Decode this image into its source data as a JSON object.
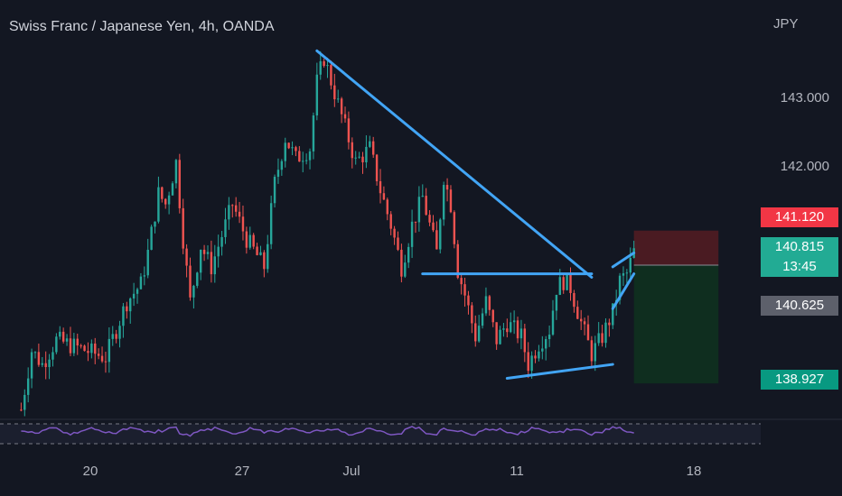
{
  "header": {
    "title": "Swiss Franc / Japanese Yen, 4h, OANDA"
  },
  "price_axis": {
    "currency": "JPY",
    "ticks": [
      "143.000",
      "142.000"
    ],
    "badges": {
      "stop": "141.120",
      "last": "140.815",
      "countdown": "13:45",
      "entry": "140.625",
      "target": "138.927"
    }
  },
  "time_axis": {
    "ticks": [
      "20",
      "27",
      "Jul",
      "11",
      "18"
    ]
  },
  "colors": {
    "background": "#131722",
    "up": "#26a69a",
    "down": "#ef5350",
    "trendline": "#42a5f5",
    "rsi": "#7e57c2",
    "stop_badge": "#f23645",
    "last_badge": "#22ab94",
    "entry_badge": "#5d606b",
    "target_badge": "#089981",
    "stop_zone": "#4a1b22",
    "target_zone": "#0f2e1f"
  },
  "chart_data": {
    "type": "candlestick",
    "symbol": "CHFJPY",
    "interval": "4h",
    "ylim": [
      138.45,
      144.3
    ],
    "x_range": [
      "2022-06-15",
      "2022-07-21"
    ],
    "close_path": [
      [
        "2022-06-16",
        138.55
      ],
      [
        "2022-06-16T12:00",
        139.4
      ],
      [
        "2022-06-17",
        139.2
      ],
      [
        "2022-06-17T16:00",
        139.55
      ],
      [
        "2022-06-20",
        139.3
      ],
      [
        "2022-06-21",
        140.1
      ],
      [
        "2022-06-21T16:00",
        140.35
      ],
      [
        "2022-06-22",
        140.8
      ],
      [
        "2022-06-22T12:00",
        141.65
      ],
      [
        "2022-06-22T20:00",
        141.5
      ],
      [
        "2022-06-23T08:00",
        142.1
      ],
      [
        "2022-06-23T16:00",
        141.0
      ],
      [
        "2022-06-24",
        140.1
      ],
      [
        "2022-06-24T12:00",
        140.9
      ],
      [
        "2022-06-25",
        140.6
      ],
      [
        "2022-06-26",
        141.5
      ],
      [
        "2022-06-26T16:00",
        141.0
      ],
      [
        "2022-06-27T12:00",
        140.6
      ],
      [
        "2022-06-28",
        141.8
      ],
      [
        "2022-06-28T12:00",
        142.45
      ],
      [
        "2022-06-29",
        142.15
      ],
      [
        "2022-06-29T16:00",
        142.3
      ],
      [
        "2022-06-30",
        143.25
      ],
      [
        "2022-06-30T08:00",
        143.6
      ],
      [
        "2022-06-30T20:00",
        143.1
      ],
      [
        "2022-07-01T08:00",
        142.6
      ],
      [
        "2022-07-01T20:00",
        142.1
      ],
      [
        "2022-07-02T12:00",
        142.3
      ],
      [
        "2022-07-03",
        141.7
      ],
      [
        "2022-07-03T12:00",
        141.2
      ],
      [
        "2022-07-04",
        140.6
      ],
      [
        "2022-07-04T12:00",
        141.2
      ],
      [
        "2022-07-05",
        141.6
      ],
      [
        "2022-07-05T16:00",
        140.8
      ],
      [
        "2022-07-06",
        141.9
      ],
      [
        "2022-07-06T08:00",
        141.5
      ],
      [
        "2022-07-06T16:00",
        140.55
      ],
      [
        "2022-07-07",
        140.2
      ],
      [
        "2022-07-07T12:00",
        139.6
      ],
      [
        "2022-07-08",
        140.1
      ],
      [
        "2022-07-08T12:00",
        139.55
      ],
      [
        "2022-07-09",
        139.8
      ],
      [
        "2022-07-09T16:00",
        139.6
      ],
      [
        "2022-07-10",
        139.2
      ],
      [
        "2022-07-10T12:00",
        139.5
      ],
      [
        "2022-07-11",
        139.7
      ],
      [
        "2022-07-11T08:00",
        140.3
      ],
      [
        "2022-07-11T16:00",
        140.4
      ],
      [
        "2022-07-12",
        140.3
      ],
      [
        "2022-07-12T12:00",
        139.8
      ],
      [
        "2022-07-13",
        139.35
      ],
      [
        "2022-07-13T12:00",
        139.6
      ],
      [
        "2022-07-14",
        139.95
      ],
      [
        "2022-07-14T08:00",
        140.4
      ],
      [
        "2022-07-14T16:00",
        140.5
      ],
      [
        "2022-07-15",
        140.815
      ]
    ],
    "high": 143.6,
    "low": 138.55,
    "trendlines": [
      {
        "from": [
          "2022-06-30",
          143.7
        ],
        "to": [
          "2022-07-13",
          140.45
        ]
      },
      {
        "from": [
          "2022-07-05",
          140.5
        ],
        "to": [
          "2022-07-13",
          140.5
        ]
      },
      {
        "from": [
          "2022-07-09",
          139.0
        ],
        "to": [
          "2022-07-14",
          139.2
        ]
      },
      {
        "from": [
          "2022-07-14",
          140.6
        ],
        "to": [
          "2022-07-15",
          140.8
        ]
      },
      {
        "from": [
          "2022-07-14",
          140.0
        ],
        "to": [
          "2022-07-15",
          140.5
        ]
      }
    ],
    "position": {
      "type": "short",
      "entry": 140.625,
      "stop": 141.12,
      "target": 138.927,
      "start": "2022-07-15",
      "end": "2022-07-19"
    },
    "indicators": [
      "RSI"
    ],
    "grid": false
  }
}
